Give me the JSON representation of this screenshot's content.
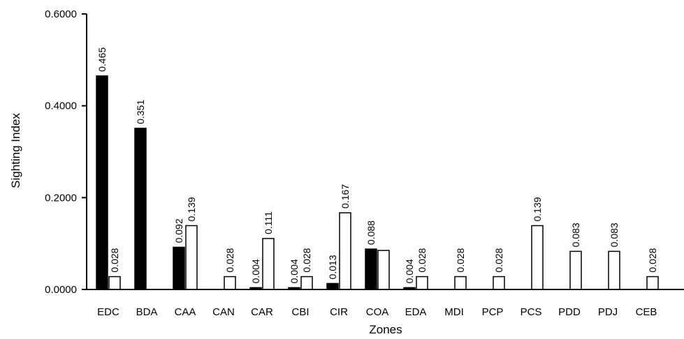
{
  "chart_data": {
    "type": "bar",
    "xlabel": "Zones",
    "ylabel": "Sighting Index",
    "ylim": [
      0,
      0.6
    ],
    "yticks": [
      "0.0000",
      "0.2000",
      "0.4000",
      "0.6000"
    ],
    "ytick_values": [
      0,
      0.2,
      0.4,
      0.6
    ],
    "categories": [
      "EDC",
      "BDA",
      "CAA",
      "CAN",
      "CAR",
      "CBI",
      "CIR",
      "COA",
      "EDA",
      "MDI",
      "PCP",
      "PCS",
      "PDD",
      "PDJ",
      "CEB"
    ],
    "series": [
      {
        "color": "#000000",
        "values": [
          0.465,
          0.351,
          0.092,
          null,
          0.004,
          0.004,
          0.013,
          0.088,
          0.004,
          null,
          null,
          null,
          null,
          null,
          null
        ],
        "labels": [
          "0.465",
          "0.351",
          "0.092",
          "",
          "0.004",
          "0.004",
          "0.013",
          "0.088",
          "0.004",
          "",
          "",
          "",
          "",
          "",
          ""
        ]
      },
      {
        "color": "#ffffff",
        "values": [
          0.028,
          null,
          0.139,
          0.028,
          0.111,
          0.028,
          0.167,
          0.085,
          0.028,
          0.028,
          0.028,
          0.139,
          0.083,
          0.083,
          0.028
        ],
        "labels": [
          "0.028",
          "",
          "0.139",
          "0.028",
          "0.111",
          "0.028",
          "0.167",
          "",
          "0.028",
          "0.028",
          "0.028",
          "0.139",
          "0.083",
          "0.083",
          "0.028"
        ]
      }
    ],
    "legend": "none",
    "grid": false
  }
}
